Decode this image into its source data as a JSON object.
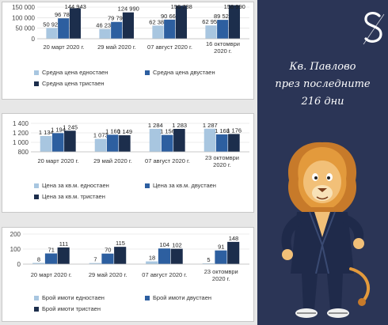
{
  "headline": {
    "line1": "Кв. Павлово",
    "line2": "през последните",
    "line3": "216 дни"
  },
  "colors": {
    "light": "#a8c6e0",
    "medium": "#2d5fa0",
    "dark": "#1c2e4c",
    "panel_bg": "#2b3556"
  },
  "icons": {
    "logo": "brand-logo-s-icon",
    "mascot": "lion-mascot-icon"
  },
  "chart_data": [
    {
      "type": "bar",
      "title": "",
      "categories": [
        "20 март 2020 г.",
        "29 май 2020 г.",
        "07 август 2020 г.",
        "16 октомври 2020 г."
      ],
      "ylim": [
        0,
        150000
      ],
      "yticks": [
        "0",
        "50 000",
        "100 000",
        "150 000"
      ],
      "ytick_values": [
        0,
        50000,
        100000,
        150000
      ],
      "series": [
        {
          "name": "Средна цена едностаен",
          "values": [
            50923,
            46236,
            62385,
            62951
          ],
          "labels": [
            "50 923",
            "46 236",
            "62 385",
            "62 951"
          ]
        },
        {
          "name": "Средна цена двустаен",
          "values": [
            96786,
            79790,
            90667,
            89523
          ],
          "labels": [
            "96 786",
            "79 790",
            "90 667",
            "89 523"
          ]
        },
        {
          "name": "Средна цена тристаен",
          "values": [
            144943,
            124990,
            156738,
            158990
          ],
          "labels": [
            "144 943",
            "124 990",
            "156 738",
            "158 990"
          ]
        }
      ],
      "legend": "bottom"
    },
    {
      "type": "bar",
      "title": "",
      "categories": [
        "20 март 2020 г.",
        "29 май 2020 г.",
        "07 август 2020 г.",
        "23 октомври 2020 г."
      ],
      "ylim": [
        800,
        1400
      ],
      "yticks": [
        "800",
        "1 000",
        "1 200",
        "1 400"
      ],
      "ytick_values": [
        800,
        1000,
        1200,
        1400
      ],
      "series": [
        {
          "name": "Цена за кв.м. едностаен",
          "values": [
            1134,
            1073,
            1284,
            1287
          ],
          "labels": [
            "1 134",
            "1 073",
            "1 284",
            "1 287"
          ]
        },
        {
          "name": "Цена за кв.м. двустаен",
          "values": [
            1194,
            1160,
            1156,
            1168
          ],
          "labels": [
            "1 194",
            "1 160",
            "1 156",
            "1 168"
          ]
        },
        {
          "name": "Цена за кв.м. тристаен",
          "values": [
            1245,
            1149,
            1283,
            1176
          ],
          "labels": [
            "1 245",
            "1 149",
            "1 283",
            "1 176"
          ]
        }
      ],
      "legend": "bottom"
    },
    {
      "type": "bar",
      "title": "",
      "categories": [
        "20 март 2020 г.",
        "29 май 2020 г.",
        "07 август 2020 г.",
        "23 октомври 2020 г."
      ],
      "ylim": [
        0,
        200
      ],
      "yticks": [
        "0",
        "100",
        "200"
      ],
      "ytick_values": [
        0,
        100,
        200
      ],
      "series": [
        {
          "name": "Брой имоти едностаен",
          "values": [
            8,
            7,
            18,
            5
          ],
          "labels": [
            "8",
            "7",
            "18",
            "5"
          ]
        },
        {
          "name": "Брой имоти двустаен",
          "values": [
            71,
            70,
            104,
            91
          ],
          "labels": [
            "71",
            "70",
            "104",
            "91"
          ]
        },
        {
          "name": "Брой имоти тристаен",
          "values": [
            111,
            115,
            102,
            148
          ],
          "labels": [
            "111",
            "115",
            "102",
            "148"
          ]
        }
      ],
      "legend": "bottom"
    }
  ]
}
